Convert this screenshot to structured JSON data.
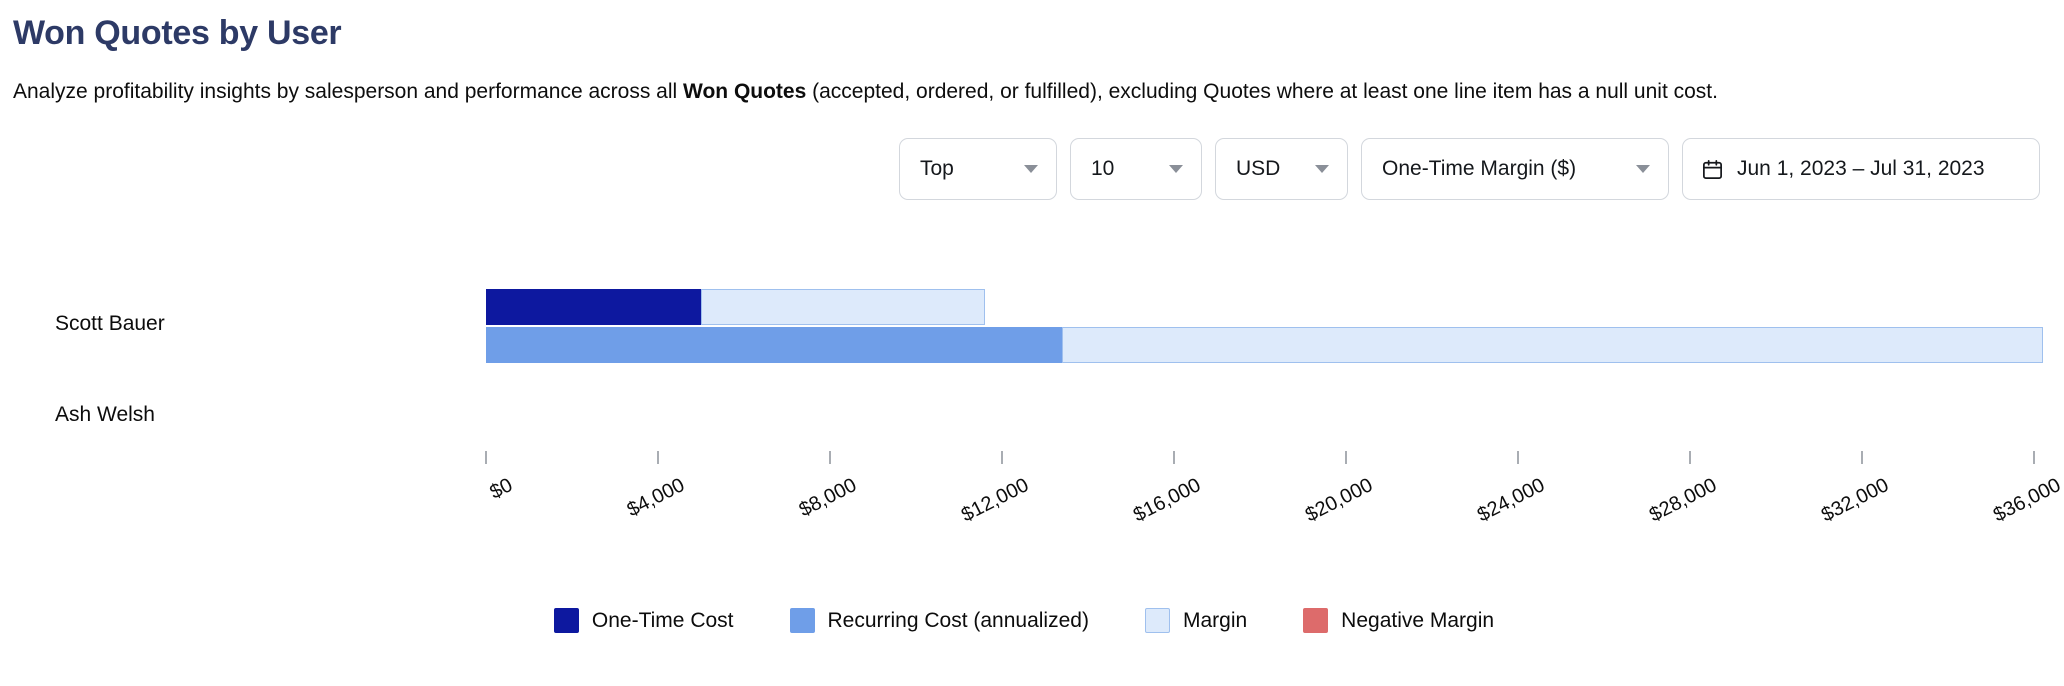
{
  "page": {
    "title": "Won Quotes by User",
    "subtitle_pre": "Analyze profitability insights by salesperson and performance across all ",
    "subtitle_bold": "Won Quotes",
    "subtitle_post": " (accepted, ordered, or fulfilled), excluding Quotes where at least one line item has a null unit cost."
  },
  "controls": {
    "top_select": {
      "value": "Top"
    },
    "count_select": {
      "value": "10"
    },
    "currency_select": {
      "value": "USD"
    },
    "metric_select": {
      "value": "One-Time Margin ($)"
    },
    "date_range": {
      "value": "Jun 1, 2023 – Jul 31, 2023"
    }
  },
  "legend": [
    {
      "label": "One-Time Cost",
      "color": "#0d189f",
      "border": "#0d189f"
    },
    {
      "label": "Recurring Cost (annualized)",
      "color": "#6f9ee8",
      "border": "#6f9ee8"
    },
    {
      "label": "Margin",
      "color": "#ddeafb",
      "border": "#9fc0ee"
    },
    {
      "label": "Negative Margin",
      "color": "#dd6b6b",
      "border": "#dd6b6b"
    }
  ],
  "chart_data": {
    "type": "bar",
    "orientation": "horizontal",
    "title": "Won Quotes by User",
    "xlabel": "",
    "ylabel": "",
    "currency": "USD",
    "grid": false,
    "axis": {
      "min": 0,
      "max": 36000,
      "tick_interval": 4000,
      "tick_labels": [
        "$0",
        "$4,000",
        "$8,000",
        "$12,000",
        "$16,000",
        "$20,000",
        "$24,000",
        "$28,000",
        "$32,000",
        "$36,000"
      ]
    },
    "rows": [
      {
        "user": "Scott Bauer",
        "bars": [
          {
            "name": "one-time",
            "segments": [
              {
                "series": "One-Time Cost",
                "value": 5000
              },
              {
                "series": "Margin",
                "value": 6600
              }
            ]
          },
          {
            "name": "recurring",
            "segments": [
              {
                "series": "Recurring Cost (annualized)",
                "value": 13400
              },
              {
                "series": "Margin",
                "value": 22800
              }
            ]
          }
        ]
      },
      {
        "user": "Ash Welsh",
        "bars": []
      }
    ],
    "series_colors": {
      "One-Time Cost": {
        "fill": "#0d189f"
      },
      "Recurring Cost (annualized)": {
        "fill": "#6f9ee8"
      },
      "Margin": {
        "fill": "#ddeafb",
        "border": "#9fc0ee"
      },
      "Negative Margin": {
        "fill": "#dd6b6b"
      }
    }
  }
}
